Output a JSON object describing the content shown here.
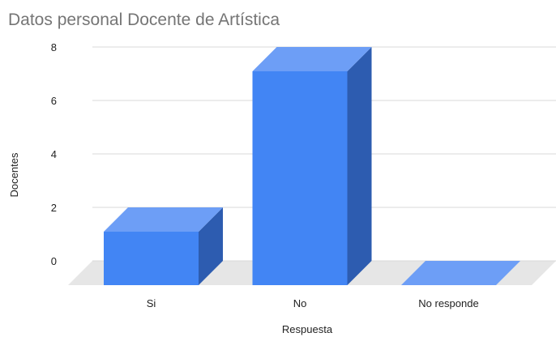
{
  "chart_data": {
    "type": "bar",
    "title": "Datos personal Docente de Artística",
    "xlabel": "Respuesta",
    "ylabel": "Docentes",
    "categories": [
      "Si",
      "No",
      "No responde"
    ],
    "values": [
      2,
      8,
      0
    ],
    "ylim": [
      0,
      8
    ],
    "yticks": [
      "0",
      "2",
      "4",
      "6",
      "8"
    ],
    "grid": true,
    "legend": "none",
    "style": "3d",
    "colors": {
      "front": "#4285f4",
      "top": "#6d9ef6",
      "side": "#2d5cb0",
      "floor": "#e6e6e6",
      "grid": "#d9d9d9",
      "title": "#757575",
      "text": "#222222"
    }
  }
}
